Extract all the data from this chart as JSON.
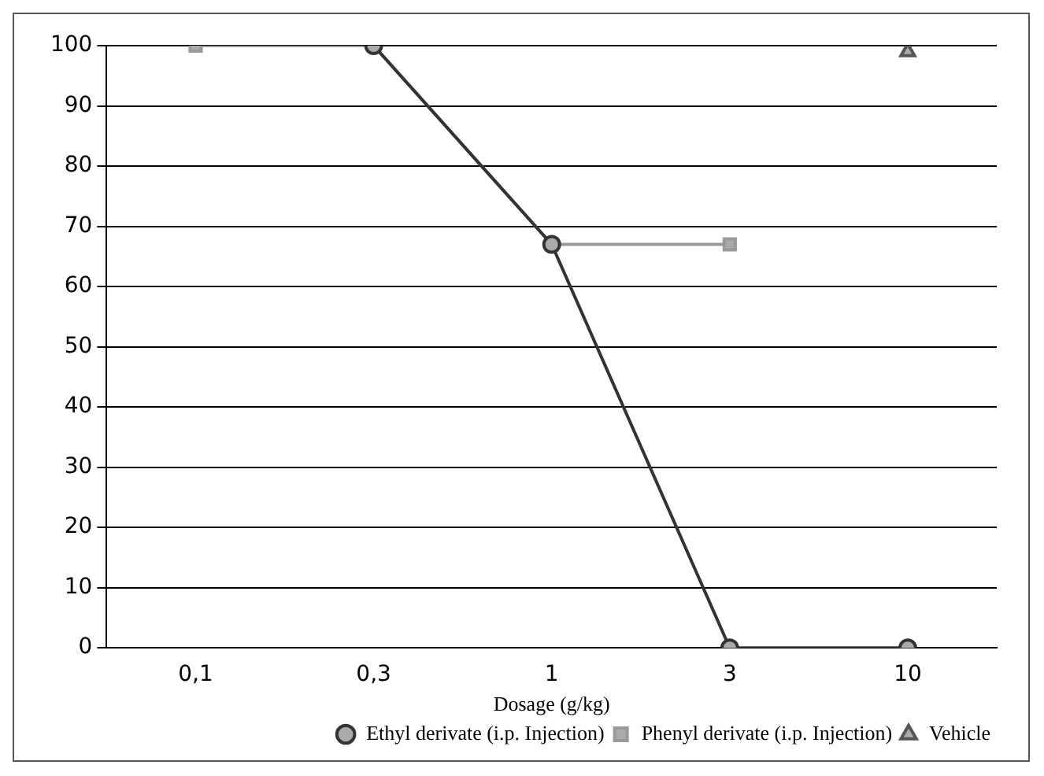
{
  "chart_data": {
    "type": "line",
    "xlabel": "Dosage (g/kg)",
    "categories": [
      "0,1",
      "0,3",
      "1",
      "3",
      "10"
    ],
    "series": [
      {
        "name": "Ethyl derivate (i.p. Injection)",
        "color": "#333333",
        "marker": "circle",
        "values": [
          null,
          100,
          67,
          0,
          0
        ]
      },
      {
        "name": "Phenyl derivate (i.p. Injection)",
        "color": "#999999",
        "marker": "square",
        "values": [
          100,
          100,
          67,
          67,
          null
        ]
      },
      {
        "name": "Vehicle",
        "color": "#555555",
        "marker": "triangle",
        "values": [
          null,
          null,
          null,
          null,
          99
        ]
      }
    ],
    "ylim": [
      0,
      100
    ],
    "yticks": [
      0,
      10,
      20,
      30,
      40,
      50,
      60,
      70,
      80,
      90,
      100
    ],
    "grid": "y",
    "legend": "bottom right"
  }
}
